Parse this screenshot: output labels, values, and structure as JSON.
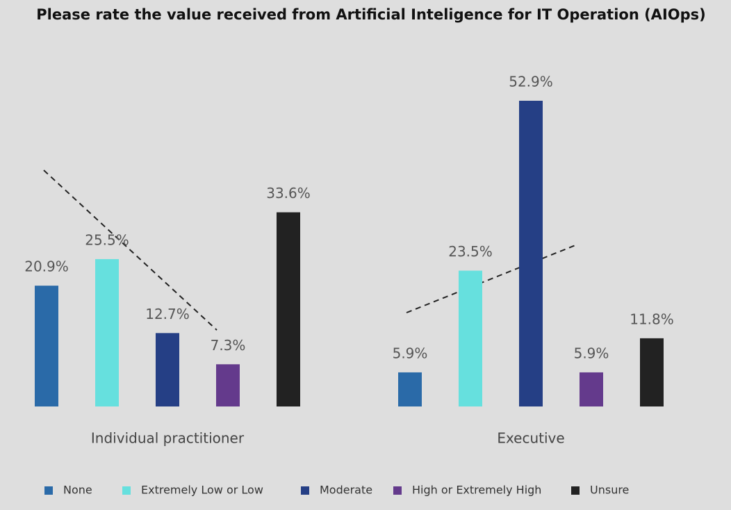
{
  "chart_data": {
    "type": "bar",
    "title": "Please rate the value received from Artificial Inteligence for IT Operation (AIOps)",
    "categories": [
      "Individual practitioner",
      "Executive"
    ],
    "series": [
      {
        "name": "None",
        "color": "#2a6aa8",
        "values": [
          20.9,
          5.9
        ],
        "value_labels": [
          "20.9%",
          "5.9%"
        ]
      },
      {
        "name": "Extremely  Low or Low",
        "color": "#66e0de",
        "values": [
          25.5,
          23.5
        ],
        "value_labels": [
          "25.5%",
          "23.5%"
        ]
      },
      {
        "name": "Moderate",
        "color": "#253f85",
        "values": [
          12.7,
          52.9
        ],
        "value_labels": [
          "12.7%",
          "52.9%"
        ]
      },
      {
        "name": "High or Extremely High",
        "color": "#643a8c",
        "values": [
          7.3,
          5.9
        ],
        "value_labels": [
          "7.3%",
          "5.9%"
        ]
      },
      {
        "name": "Unsure",
        "color": "#222222",
        "values": [
          33.6,
          11.8
        ],
        "value_labels": [
          "33.6%",
          "11.8%"
        ]
      }
    ]
  }
}
